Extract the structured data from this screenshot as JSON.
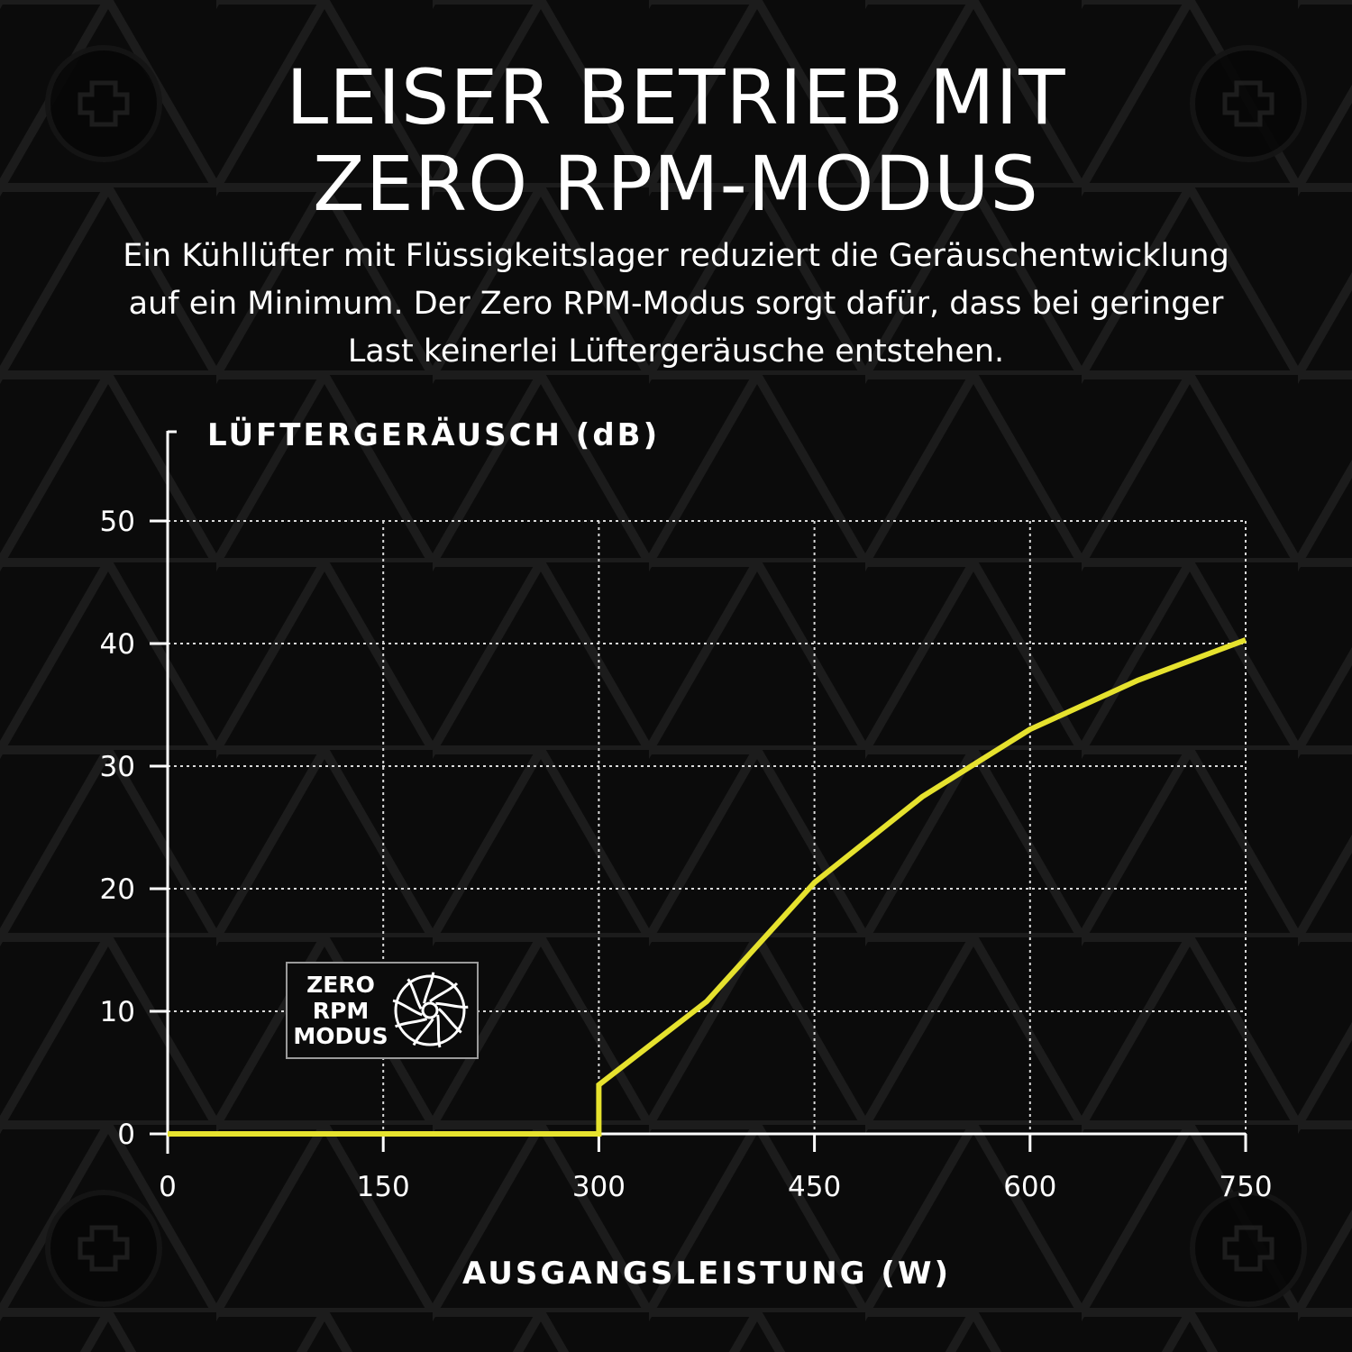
{
  "header": {
    "title_lines": [
      "LEISER BETRIEB MIT",
      "ZERO RPM-MODUS"
    ],
    "description_lines": [
      "Ein Kühllüfter mit Flüssigkeitslager reduziert die Geräuschentwicklung",
      "auf ein Minimum. Der Zero RPM-Modus sorgt dafür, dass bei geringer",
      "Last keinerlei Lüftergeräusche entstehen."
    ]
  },
  "badge": {
    "lines": [
      "ZERO",
      "RPM",
      "MODUS"
    ],
    "icon": "fan-icon"
  },
  "colors": {
    "background": "#0b0b0b",
    "line": "#e6e22e",
    "grid": "#d9d9d9",
    "axis": "#ffffff"
  },
  "chart_data": {
    "type": "line",
    "title": "",
    "xlabel": "AUSGANGSLEISTUNG (W)",
    "ylabel": "LÜFTERGERÄUSCH (dB)",
    "xlim": [
      0,
      750
    ],
    "ylim": [
      0,
      50
    ],
    "xticks": [
      0,
      150,
      300,
      450,
      600,
      750
    ],
    "yticks": [
      0,
      10,
      20,
      30,
      40,
      50
    ],
    "grid": true,
    "legend": "none",
    "series": [
      {
        "x": [
          0,
          300,
          300,
          375,
          450,
          525,
          600,
          675,
          750
        ],
        "y": [
          0,
          0,
          4,
          10.8,
          20.5,
          27.5,
          33,
          37,
          40.3
        ]
      }
    ]
  }
}
